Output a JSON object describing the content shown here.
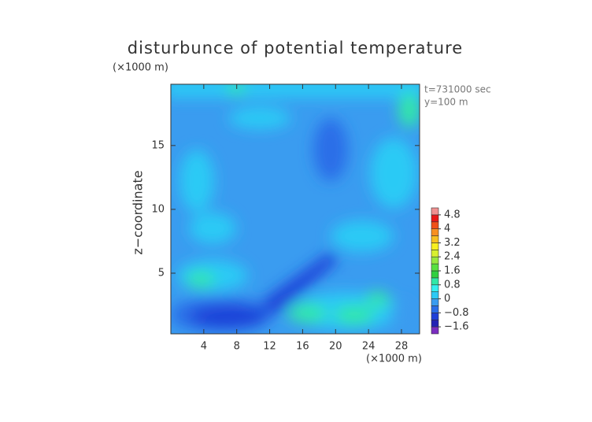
{
  "chart_data": {
    "type": "contour",
    "title": "disturbunce of potential temperature",
    "y_unit": "(×1000 m)",
    "x_unit": "(×1000 m)",
    "ylabel": "z−coordinate",
    "annotations": [
      "t=731000 sec",
      "y=100 m"
    ],
    "xlim": [
      0,
      30.2
    ],
    "ylim": [
      0.25,
      19.8
    ],
    "xticks": [
      4,
      8,
      12,
      16,
      20,
      24,
      28
    ],
    "yticks": [
      5,
      10,
      15
    ],
    "colorbar": {
      "levels": [
        -2.0,
        -1.6,
        -1.2,
        -0.8,
        -0.4,
        0,
        0.4,
        0.8,
        1.2,
        1.6,
        2.0,
        2.4,
        2.8,
        3.2,
        3.6,
        4.0,
        4.4,
        4.8,
        5.2
      ],
      "colors": [
        "#7a2cc0",
        "#2222b4",
        "#1f40d8",
        "#2a6ee8",
        "#3a9cf0",
        "#2ccaf5",
        "#34f0f0",
        "#30e8a8",
        "#30d040",
        "#58e040",
        "#98e840",
        "#d8f030",
        "#f8f020",
        "#f8c020",
        "#f89020",
        "#f05018",
        "#e81818",
        "#f09090"
      ],
      "ticks": [
        {
          "value": -1.6,
          "label": "−1.6"
        },
        {
          "value": -0.8,
          "label": "−0.8"
        },
        0,
        0.8,
        1.6,
        2.4,
        3.2,
        4,
        4.8
      ]
    }
  }
}
